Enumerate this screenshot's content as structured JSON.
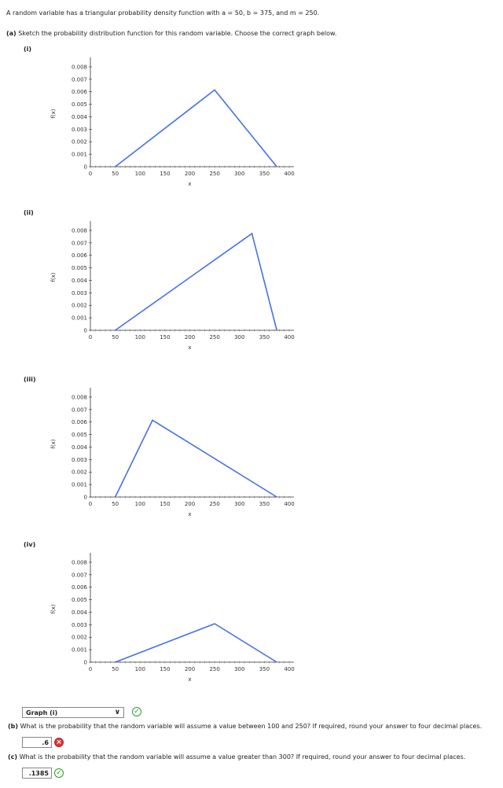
{
  "intro": "A random variable has a triangular probability density function with a = 50, b = 375, and m = 250.",
  "part_a": {
    "label": "(a)",
    "text": "Sketch the probability distribution function for this random variable. Choose the correct graph below."
  },
  "graphs": [
    {
      "label": "(i)",
      "points": [
        [
          50,
          0
        ],
        [
          250,
          0.00615
        ],
        [
          375,
          0
        ]
      ]
    },
    {
      "label": "(ii)",
      "points": [
        [
          50,
          0
        ],
        [
          325,
          0.00775
        ],
        [
          375,
          0
        ]
      ]
    },
    {
      "label": "(iii)",
      "points": [
        [
          50,
          0
        ],
        [
          125,
          0.00615
        ],
        [
          375,
          0
        ]
      ]
    },
    {
      "label": "(iv)",
      "points": [
        [
          50,
          0
        ],
        [
          250,
          0.00308
        ],
        [
          375,
          0
        ]
      ]
    }
  ],
  "axes": {
    "ylabel": "f(x)",
    "xlabel": "x",
    "yticks": [
      "0",
      "0.001",
      "0.002",
      "0.003",
      "0.004",
      "0.005",
      "0.006",
      "0.007",
      "0.008"
    ],
    "xticks": [
      "0",
      "50",
      "100",
      "150",
      "200",
      "250",
      "300",
      "350",
      "400"
    ]
  },
  "answer_a": {
    "selected": "Graph (i)"
  },
  "part_b": {
    "label": "(b)",
    "text": "What is the probability that the random variable will assume a value between 100 and 250? If required, round your answer to four decimal places.",
    "answer": ".6"
  },
  "part_c": {
    "label": "(c)",
    "text": "What is the probability that the random variable will assume a value greater than 300? If required, round your answer to four decimal places.",
    "answer": ".1385"
  },
  "colors": {
    "line": "#4472e4",
    "correct": "#2a9d2a",
    "incorrect": "#d9353a"
  },
  "icons": {
    "correct": "check-circle-icon",
    "incorrect": "x-circle-icon",
    "dropdown": "chevron-down-icon"
  }
}
